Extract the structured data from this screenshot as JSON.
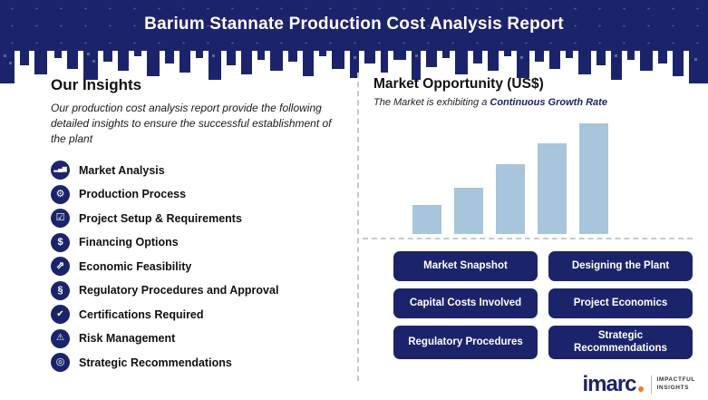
{
  "header": {
    "title": "Barium Stannate Production Cost Analysis Report"
  },
  "insights": {
    "heading": "Our Insights",
    "description": "Our production cost analysis report provide the following detailed insights to ensure the successful establishment of the plant",
    "items": [
      {
        "label": "Market Analysis",
        "icon": "bar-chart-icon",
        "glyph": "▂▄▆"
      },
      {
        "label": "Production Process",
        "icon": "gear-icon",
        "glyph": "⚙"
      },
      {
        "label": "Project Setup & Requirements",
        "icon": "checklist-icon",
        "glyph": "☑"
      },
      {
        "label": "Financing Options",
        "icon": "dollar-icon",
        "glyph": "$"
      },
      {
        "label": "Economic Feasibility",
        "icon": "growth-arrow-icon",
        "glyph": "⇗"
      },
      {
        "label": "Regulatory Procedures and Approval",
        "icon": "regulation-icon",
        "glyph": "§"
      },
      {
        "label": "Certifications Required",
        "icon": "checkmark-icon",
        "glyph": "✔"
      },
      {
        "label": "Risk Management",
        "icon": "warning-icon",
        "glyph": "⚠"
      },
      {
        "label": "Strategic Recommendations",
        "icon": "target-icon",
        "glyph": "◎"
      }
    ]
  },
  "market": {
    "heading": "Market Opportunity (US$)",
    "subtitle_prefix": "The Market is exhibiting a ",
    "subtitle_highlight": "Continuous Growth Rate",
    "buttons": [
      "Market Snapshot",
      "Designing the Plant",
      "Capital Costs Involved",
      "Project Economics",
      "Regulatory Procedures",
      "Strategic Recommendations"
    ]
  },
  "chart_data": {
    "type": "bar",
    "title": "Market Opportunity (US$)",
    "values": [
      25,
      40,
      60,
      78,
      95
    ],
    "xlabel": "",
    "ylabel": "",
    "ylim": [
      0,
      100
    ],
    "grid": false,
    "legend": false,
    "bar_color": "#a7c5db"
  },
  "logo": {
    "brand": "imarc",
    "tagline_top": "IMPACTFUL",
    "tagline_bottom": "INSIGHTS"
  },
  "colors": {
    "navy": "#1b246b",
    "bar_blue": "#a7c5db",
    "orange": "#f47b20",
    "dash_gray": "#c9c9c9"
  }
}
